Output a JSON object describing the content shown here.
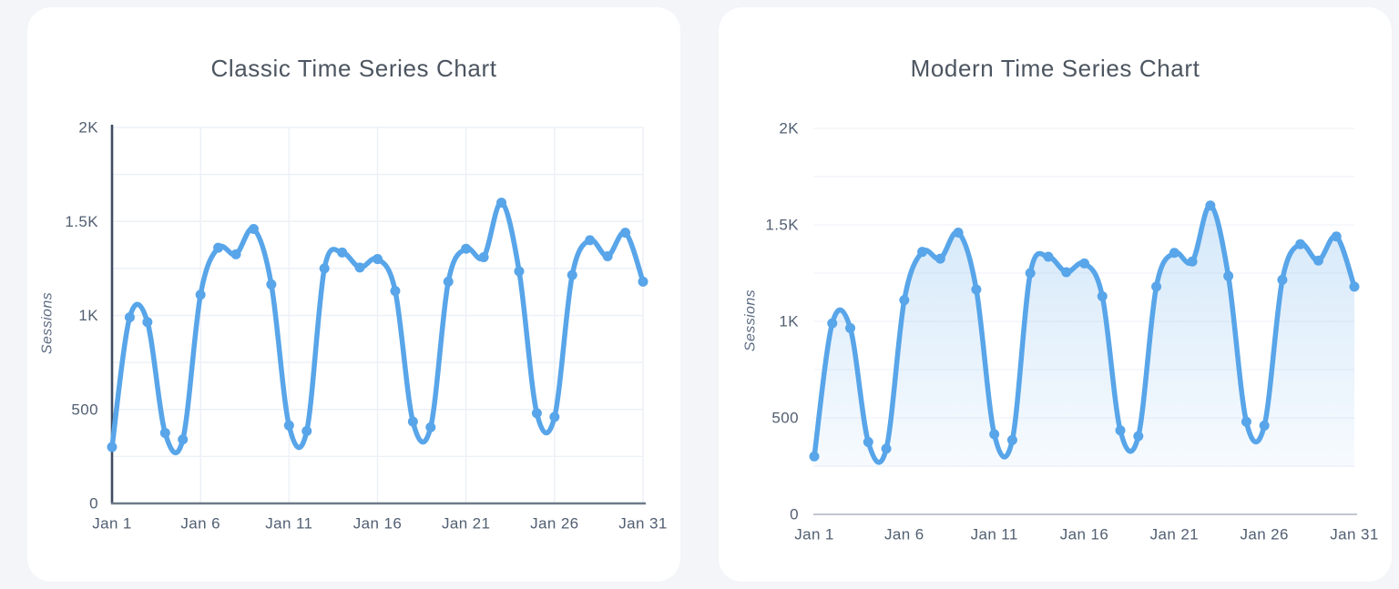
{
  "page": {
    "background_color": "#f3f5f8",
    "card_background_color": "#ffffff"
  },
  "chart_data": [
    {
      "type": "line",
      "title": "Classic Time Series Chart",
      "xlabel": "",
      "ylabel": "Sessions",
      "ylim": [
        0,
        2000
      ],
      "categories": [
        "Jan 1",
        "Jan 2",
        "Jan 3",
        "Jan 4",
        "Jan 5",
        "Jan 6",
        "Jan 7",
        "Jan 8",
        "Jan 9",
        "Jan 10",
        "Jan 11",
        "Jan 12",
        "Jan 13",
        "Jan 14",
        "Jan 15",
        "Jan 16",
        "Jan 17",
        "Jan 18",
        "Jan 19",
        "Jan 20",
        "Jan 21",
        "Jan 22",
        "Jan 23",
        "Jan 24",
        "Jan 25",
        "Jan 26",
        "Jan 27",
        "Jan 28",
        "Jan 29",
        "Jan 30",
        "Jan 31"
      ],
      "values": [
        300,
        990,
        965,
        375,
        340,
        1110,
        1360,
        1325,
        1460,
        1165,
        415,
        385,
        1250,
        1335,
        1255,
        1300,
        1130,
        435,
        405,
        1180,
        1355,
        1310,
        1600,
        1235,
        480,
        460,
        1215,
        1400,
        1315,
        1440,
        1180
      ],
      "yticks": {
        "labels": [
          "0",
          "500",
          "1K",
          "1.5K",
          "2K"
        ],
        "values": [
          0,
          500,
          1000,
          1500,
          2000
        ]
      },
      "xticks": {
        "labels": [
          "Jan 1",
          "Jan 6",
          "Jan 11",
          "Jan 16",
          "Jan 21",
          "Jan 26",
          "Jan 31"
        ],
        "day_index": [
          0,
          5,
          10,
          15,
          20,
          25,
          30
        ]
      },
      "grid": {
        "horizontal": true,
        "vertical": true,
        "step": 250
      },
      "show_y_axis_line": true,
      "show_x_axis_line": true,
      "area_fill": false,
      "show_markers": true,
      "legend": "none",
      "colors": {
        "line": "#58a5e9",
        "marker": "#58a5e9",
        "grid": "#edf1f7",
        "y_axis": "#3f4c61",
        "x_axis": "#6e7a89",
        "tick_label": "#525f72",
        "title": "#4c5560",
        "ylabel": "#5d6c83"
      }
    },
    {
      "type": "area",
      "title": "Modern Time Series Chart",
      "xlabel": "",
      "ylabel": "Sessions",
      "ylim": [
        0,
        2000
      ],
      "categories": [
        "Jan 1",
        "Jan 2",
        "Jan 3",
        "Jan 4",
        "Jan 5",
        "Jan 6",
        "Jan 7",
        "Jan 8",
        "Jan 9",
        "Jan 10",
        "Jan 11",
        "Jan 12",
        "Jan 13",
        "Jan 14",
        "Jan 15",
        "Jan 16",
        "Jan 17",
        "Jan 18",
        "Jan 19",
        "Jan 20",
        "Jan 21",
        "Jan 22",
        "Jan 23",
        "Jan 24",
        "Jan 25",
        "Jan 26",
        "Jan 27",
        "Jan 28",
        "Jan 29",
        "Jan 30",
        "Jan 31"
      ],
      "values": [
        300,
        990,
        965,
        375,
        340,
        1110,
        1360,
        1325,
        1460,
        1165,
        415,
        385,
        1250,
        1335,
        1255,
        1300,
        1130,
        435,
        405,
        1180,
        1355,
        1310,
        1600,
        1235,
        480,
        460,
        1215,
        1400,
        1315,
        1440,
        1180
      ],
      "yticks": {
        "labels": [
          "0",
          "500",
          "1K",
          "1.5K",
          "2K"
        ],
        "values": [
          0,
          500,
          1000,
          1500,
          2000
        ]
      },
      "xticks": {
        "labels": [
          "Jan 1",
          "Jan 6",
          "Jan 11",
          "Jan 16",
          "Jan 21",
          "Jan 26",
          "Jan 31"
        ],
        "day_index": [
          0,
          5,
          10,
          15,
          20,
          25,
          30
        ]
      },
      "grid": {
        "horizontal": true,
        "vertical": false,
        "step": 250
      },
      "show_y_axis_line": false,
      "show_x_axis_line": true,
      "area_fill": true,
      "show_markers": true,
      "legend": "none",
      "colors": {
        "line": "#58a5e9",
        "marker": "#58a5e9",
        "grid": "#f3f6fa",
        "x_axis": "#c2c7d0",
        "tick_label": "#525f72",
        "title": "#4c5560",
        "ylabel": "#5d6c83",
        "fill_top": "rgba(95,168,234,0.33)",
        "fill_bottom": "rgba(95,168,234,0.05)"
      }
    }
  ]
}
